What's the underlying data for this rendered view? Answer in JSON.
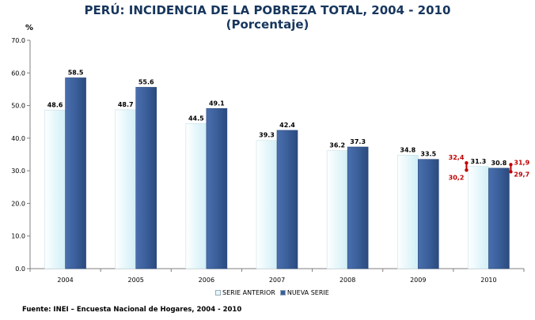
{
  "chart_data": {
    "type": "bar",
    "title": "PERÚ: INCIDENCIA DE LA POBREZA TOTAL, 2004 - 2010",
    "subtitle": "(Porcentaje)",
    "ylabel": "%",
    "ylim": [
      0,
      70
    ],
    "yticks": [
      "0.0",
      "10.0",
      "20.0",
      "30.0",
      "40.0",
      "50.0",
      "60.0",
      "70.0"
    ],
    "categories": [
      "2004",
      "2005",
      "2006",
      "2007",
      "2008",
      "2009",
      "2010"
    ],
    "series": [
      {
        "name": "SERIE ANTERIOR",
        "color": "#e6f7fb",
        "values": [
          48.6,
          48.7,
          44.5,
          39.3,
          36.2,
          34.8,
          31.3
        ],
        "labels": [
          "48.6",
          "48.7",
          "44.5",
          "39.3",
          "36.2",
          "34.8",
          "31.3"
        ]
      },
      {
        "name": "NUEVA SERIE",
        "color": "#3b5f9a",
        "values": [
          58.5,
          55.6,
          49.1,
          42.4,
          37.3,
          33.5,
          30.8
        ],
        "labels": [
          "58.5",
          "55.6",
          "49.1",
          "42.4",
          "37.3",
          "33.5",
          "30.8"
        ]
      }
    ],
    "confidence_intervals": [
      {
        "category": "2010",
        "series": "SERIE ANTERIOR",
        "upper": 32.4,
        "lower": 30.2,
        "upper_label": "32,4",
        "lower_label": "30,2",
        "color": "#c00000"
      },
      {
        "category": "2010",
        "series": "NUEVA SERIE",
        "upper": 31.9,
        "lower": 29.7,
        "upper_label": "31,9",
        "lower_label": "29,7",
        "color": "#c00000"
      }
    ],
    "grid": false,
    "legend_position": "bottom"
  },
  "source": "Fuente: INEI – Encuesta Nacional de Hogares, 2004 - 2010"
}
